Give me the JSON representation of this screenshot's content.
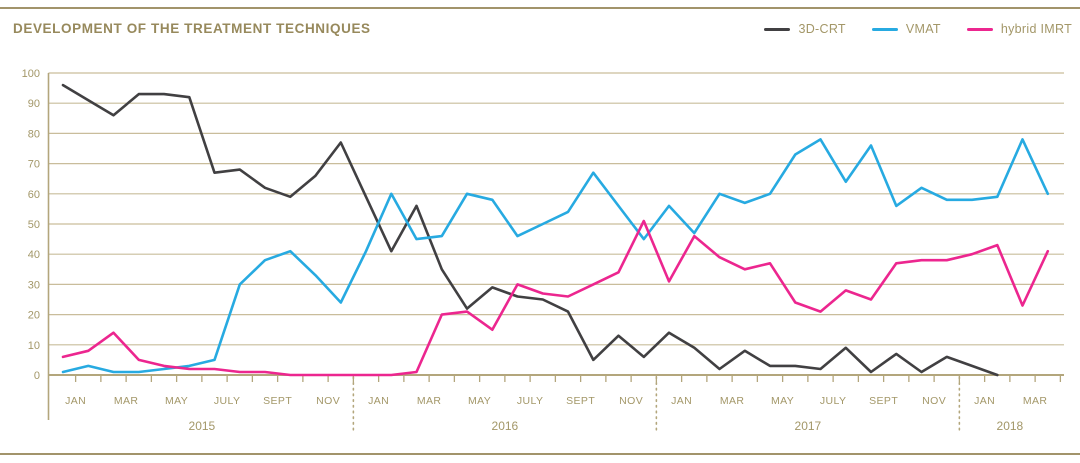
{
  "page": {
    "title": "DEVELOPMENT OF THE TREATMENT TECHNIQUES"
  },
  "legend": [
    {
      "label": "3D-CRT",
      "color": "#414042"
    },
    {
      "label": "VMAT",
      "color": "#27aae1"
    },
    {
      "label": "hybrid IMRT",
      "color": "#ec268f"
    }
  ],
  "colors": {
    "gold_text": "#a39768",
    "gold_line": "#b3a67c",
    "grid_line": "#c9bd9b",
    "title_text": "#97895c",
    "crt_line": "#414042",
    "vmat_line": "#27aae1",
    "imrt_line": "#ec268f"
  },
  "chart_data": {
    "type": "line",
    "title": "DEVELOPMENT OF THE TREATMENT TECHNIQUES",
    "xlabel": "",
    "ylabel": "",
    "ylim": [
      0,
      100
    ],
    "ytick_step": 10,
    "grid": true,
    "legend_position": "top-right",
    "month_tick_labels": [
      "JAN",
      "MAR",
      "MAY",
      "JULY",
      "SEPT",
      "NOV"
    ],
    "years": [
      {
        "label": "2015",
        "n_months": 12
      },
      {
        "label": "2016",
        "n_months": 12
      },
      {
        "label": "2017",
        "n_months": 12
      },
      {
        "label": "2018",
        "n_months": 4
      }
    ],
    "x": [
      "JAN 2015",
      "FEB 2015",
      "MAR 2015",
      "APR 2015",
      "MAY 2015",
      "JUN 2015",
      "JUL 2015",
      "AUG 2015",
      "SEP 2015",
      "OCT 2015",
      "NOV 2015",
      "DEC 2015",
      "JAN 2016",
      "FEB 2016",
      "MAR 2016",
      "APR 2016",
      "MAY 2016",
      "JUN 2016",
      "JUL 2016",
      "AUG 2016",
      "SEP 2016",
      "OCT 2016",
      "NOV 2016",
      "DEC 2016",
      "JAN 2017",
      "FEB 2017",
      "MAR 2017",
      "APR 2017",
      "MAY 2017",
      "JUN 2017",
      "JUL 2017",
      "AUG 2017",
      "SEP 2017",
      "OCT 2017",
      "NOV 2017",
      "DEC 2017",
      "JAN 2018",
      "FEB 2018",
      "MAR 2018",
      "APR 2018"
    ],
    "series": [
      {
        "name": "3D-CRT",
        "color": "#414042",
        "values": [
          96,
          91,
          86,
          93,
          93,
          92,
          67,
          68,
          62,
          59,
          66,
          77,
          59,
          41,
          56,
          35,
          22,
          29,
          26,
          25,
          21,
          5,
          13,
          6,
          14,
          9,
          2,
          8,
          3,
          3,
          2,
          9,
          1,
          7,
          1,
          6,
          3,
          0,
          null,
          null
        ]
      },
      {
        "name": "VMAT",
        "color": "#27aae1",
        "values": [
          1,
          3,
          1,
          1,
          2,
          3,
          5,
          30,
          38,
          41,
          33,
          24,
          41,
          60,
          45,
          46,
          60,
          58,
          46,
          50,
          54,
          67,
          56,
          45,
          56,
          47,
          60,
          57,
          60,
          73,
          78,
          64,
          76,
          56,
          62,
          58,
          58,
          59,
          78,
          60
        ]
      },
      {
        "name": "hybrid IMRT",
        "color": "#ec268f",
        "values": [
          6,
          8,
          14,
          5,
          3,
          2,
          2,
          1,
          1,
          0,
          0,
          0,
          0,
          0,
          1,
          20,
          21,
          15,
          30,
          27,
          26,
          30,
          34,
          51,
          31,
          46,
          39,
          35,
          37,
          24,
          21,
          28,
          25,
          37,
          38,
          38,
          40,
          43,
          23,
          41
        ]
      }
    ]
  }
}
